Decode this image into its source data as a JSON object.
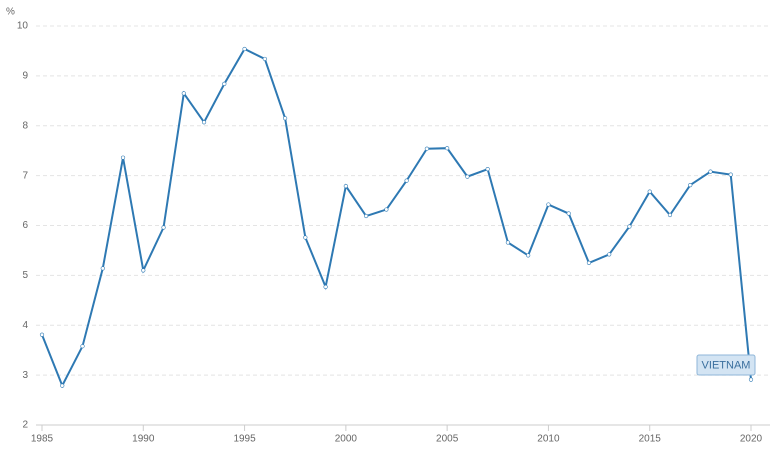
{
  "chart_data": {
    "type": "line",
    "y_label": "%",
    "x": [
      1985,
      1986,
      1987,
      1988,
      1989,
      1990,
      1991,
      1992,
      1993,
      1994,
      1995,
      1996,
      1997,
      1998,
      1999,
      2000,
      2001,
      2002,
      2003,
      2004,
      2005,
      2006,
      2007,
      2008,
      2009,
      2010,
      2011,
      2012,
      2013,
      2014,
      2015,
      2016,
      2017,
      2018,
      2019,
      2020
    ],
    "series": [
      {
        "name": "VIETNAM",
        "color": "#2e79b3",
        "values": [
          3.81,
          2.79,
          3.58,
          5.14,
          7.36,
          5.1,
          5.96,
          8.65,
          8.07,
          8.84,
          9.54,
          9.34,
          8.15,
          5.76,
          4.77,
          6.79,
          6.19,
          6.32,
          6.9,
          7.54,
          7.55,
          6.98,
          7.13,
          5.66,
          5.4,
          6.42,
          6.24,
          5.25,
          5.42,
          5.98,
          6.68,
          6.21,
          6.81,
          7.08,
          7.02,
          2.91
        ]
      }
    ],
    "xlim": [
      1985,
      2020
    ],
    "xticks": [
      1985,
      1990,
      1995,
      2000,
      2005,
      2010,
      2015,
      2020
    ],
    "ylim": [
      2,
      10
    ],
    "yticks": [
      2,
      3,
      4,
      5,
      6,
      7,
      8,
      9,
      10
    ],
    "grid": true
  }
}
